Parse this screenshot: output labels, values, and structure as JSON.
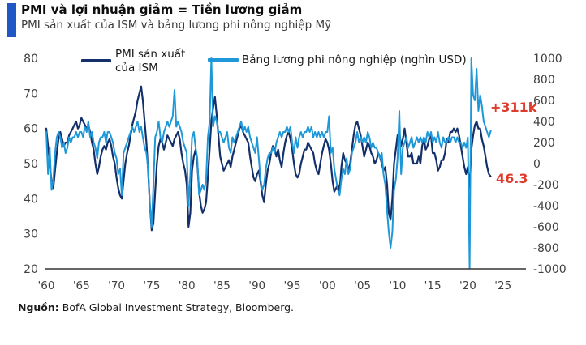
{
  "header": {
    "title": "PMI và lợi nhuận giảm = Tiền lương giảm",
    "subtitle": "PMI sản xuất của ISM và bảng lương phi nông nghiệp Mỹ",
    "accent_color": "#1f57c4"
  },
  "legend": {
    "pmi": {
      "line1": "PMI sản xuất",
      "line2": "của ISM",
      "color": "#13306b"
    },
    "payrolls": {
      "label": "Bảng lương phi nông nghiệp (nghìn USD)",
      "color": "#1e98d8"
    }
  },
  "annotations": {
    "payrolls_last": "+311k",
    "pmi_last": "46.3",
    "color": "#dd3b2c"
  },
  "source": {
    "prefix": "Nguồn:",
    "text": " BofA Global Investment Strategy, Bloomberg."
  },
  "chart_data": {
    "type": "line",
    "title": "PMI sản xuất của ISM và bảng lương phi nông nghiệp Mỹ",
    "x_start_year": 1960,
    "x_step_years": 0.25,
    "x_tick_years": [
      1960,
      1965,
      1970,
      1975,
      1980,
      1985,
      1990,
      1995,
      2000,
      2005,
      2010,
      2015,
      2020,
      2025
    ],
    "x_tick_labels": [
      "'60",
      "'65",
      "'70",
      "'75",
      "'80",
      "'85",
      "'90",
      "'95",
      "'00",
      "'05",
      "'10",
      "'15",
      "'20",
      "'25"
    ],
    "left_axis": {
      "ticks": [
        80,
        70,
        60,
        50,
        40,
        30,
        20
      ],
      "range": [
        20,
        80
      ]
    },
    "right_axis": {
      "ticks": [
        1000,
        800,
        600,
        400,
        200,
        0,
        -200,
        -400,
        -600,
        -800,
        -1000
      ],
      "range": [
        -1000,
        1000
      ]
    },
    "axis_text_color": "#404040",
    "axis_line_color": "#333333",
    "series": [
      {
        "name": "PMI sản xuất của ISM",
        "axis": "left",
        "color": "#13306b",
        "width": 2.2,
        "values": [
          60,
          55,
          50,
          45,
          43,
          48,
          53,
          57,
          59,
          57,
          55,
          56,
          56,
          58,
          59,
          60,
          61,
          62,
          60,
          61,
          63,
          62,
          61,
          60,
          61,
          59,
          56,
          54,
          50,
          47,
          49,
          52,
          54,
          55,
          54,
          56,
          57,
          55,
          52,
          50,
          46,
          43,
          41,
          40,
          45,
          50,
          53,
          55,
          58,
          61,
          63,
          65,
          68,
          70,
          72,
          68,
          62,
          56,
          48,
          38,
          31,
          33,
          42,
          50,
          55,
          57,
          56,
          54,
          56,
          58,
          57,
          56,
          55,
          57,
          58,
          59,
          57,
          53,
          50,
          48,
          44,
          32,
          36,
          48,
          52,
          54,
          50,
          42,
          38,
          36,
          37,
          39,
          46,
          54,
          62,
          66,
          69,
          64,
          58,
          52,
          50,
          48,
          49,
          50,
          51,
          49,
          52,
          54,
          56,
          58,
          60,
          61,
          59,
          58,
          57,
          56,
          52,
          49,
          46,
          45,
          47,
          48,
          45,
          41,
          39,
          44,
          48,
          50,
          53,
          55,
          54,
          52,
          54,
          51,
          49,
          53,
          56,
          58,
          59,
          57,
          54,
          50,
          47,
          46,
          47,
          50,
          52,
          54,
          54,
          56,
          55,
          54,
          53,
          50,
          48,
          47,
          50,
          53,
          55,
          57,
          56,
          54,
          50,
          45,
          42,
          43,
          44,
          42,
          49,
          53,
          51,
          50,
          48,
          50,
          54,
          58,
          61,
          62,
          60,
          58,
          55,
          52,
          54,
          56,
          55,
          53,
          52,
          50,
          51,
          53,
          52,
          50,
          48,
          49,
          44,
          36,
          34,
          40,
          50,
          54,
          58,
          59,
          55,
          57,
          60,
          56,
          52,
          52,
          53,
          50,
          50,
          50,
          52,
          50,
          55,
          57,
          54,
          55,
          57,
          58,
          53,
          53,
          51,
          48,
          49,
          51,
          51,
          53,
          57,
          56,
          59,
          59,
          60,
          59,
          60,
          58,
          55,
          52,
          49,
          47,
          49,
          43,
          54,
          58,
          61,
          62,
          60,
          60,
          57,
          55,
          52,
          49,
          47,
          46.3
        ]
      },
      {
        "name": "Bảng lương phi nông nghiệp (nghìn USD)",
        "axis": "right",
        "color": "#1e98d8",
        "width": 2,
        "values": [
          300,
          -100,
          150,
          -250,
          -150,
          100,
          250,
          300,
          250,
          150,
          200,
          100,
          150,
          250,
          200,
          250,
          250,
          300,
          250,
          300,
          300,
          250,
          350,
          300,
          400,
          250,
          300,
          200,
          150,
          50,
          200,
          250,
          250,
          300,
          200,
          300,
          300,
          250,
          200,
          100,
          50,
          -100,
          -50,
          -300,
          100,
          150,
          200,
          250,
          300,
          350,
          300,
          350,
          400,
          300,
          350,
          250,
          150,
          100,
          -50,
          -400,
          -600,
          -200,
          250,
          300,
          400,
          250,
          200,
          300,
          350,
          400,
          350,
          400,
          450,
          700,
          350,
          400,
          350,
          300,
          200,
          150,
          100,
          -400,
          -100,
          250,
          300,
          150,
          50,
          -300,
          -250,
          -200,
          -250,
          -150,
          250,
          400,
          1000,
          350,
          450,
          400,
          300,
          300,
          250,
          200,
          250,
          300,
          150,
          100,
          250,
          200,
          250,
          300,
          350,
          400,
          300,
          350,
          300,
          350,
          250,
          200,
          150,
          100,
          250,
          50,
          -150,
          -250,
          -200,
          -50,
          50,
          100,
          100,
          150,
          100,
          200,
          250,
          300,
          250,
          300,
          300,
          350,
          300,
          350,
          200,
          100,
          250,
          150,
          250,
          300,
          250,
          300,
          300,
          350,
          300,
          350,
          250,
          300,
          250,
          300,
          250,
          300,
          250,
          300,
          300,
          450,
          100,
          150,
          -50,
          -150,
          -250,
          -300,
          -150,
          -50,
          -100,
          50,
          -100,
          -50,
          100,
          150,
          200,
          300,
          200,
          250,
          200,
          250,
          200,
          300,
          250,
          150,
          200,
          150,
          150,
          100,
          50,
          100,
          -100,
          -200,
          -450,
          -650,
          -800,
          -650,
          -250,
          -150,
          50,
          500,
          -100,
          150,
          200,
          250,
          150,
          200,
          250,
          150,
          200,
          250,
          200,
          250,
          200,
          250,
          200,
          300,
          250,
          300,
          200,
          250,
          200,
          300,
          200,
          150,
          250,
          200,
          200,
          250,
          200,
          250,
          250,
          200,
          250,
          200,
          200,
          150,
          200,
          150,
          250,
          -1000,
          1000,
          650,
          600,
          900,
          500,
          650,
          550,
          400,
          350,
          300,
          250,
          311
        ]
      }
    ]
  }
}
